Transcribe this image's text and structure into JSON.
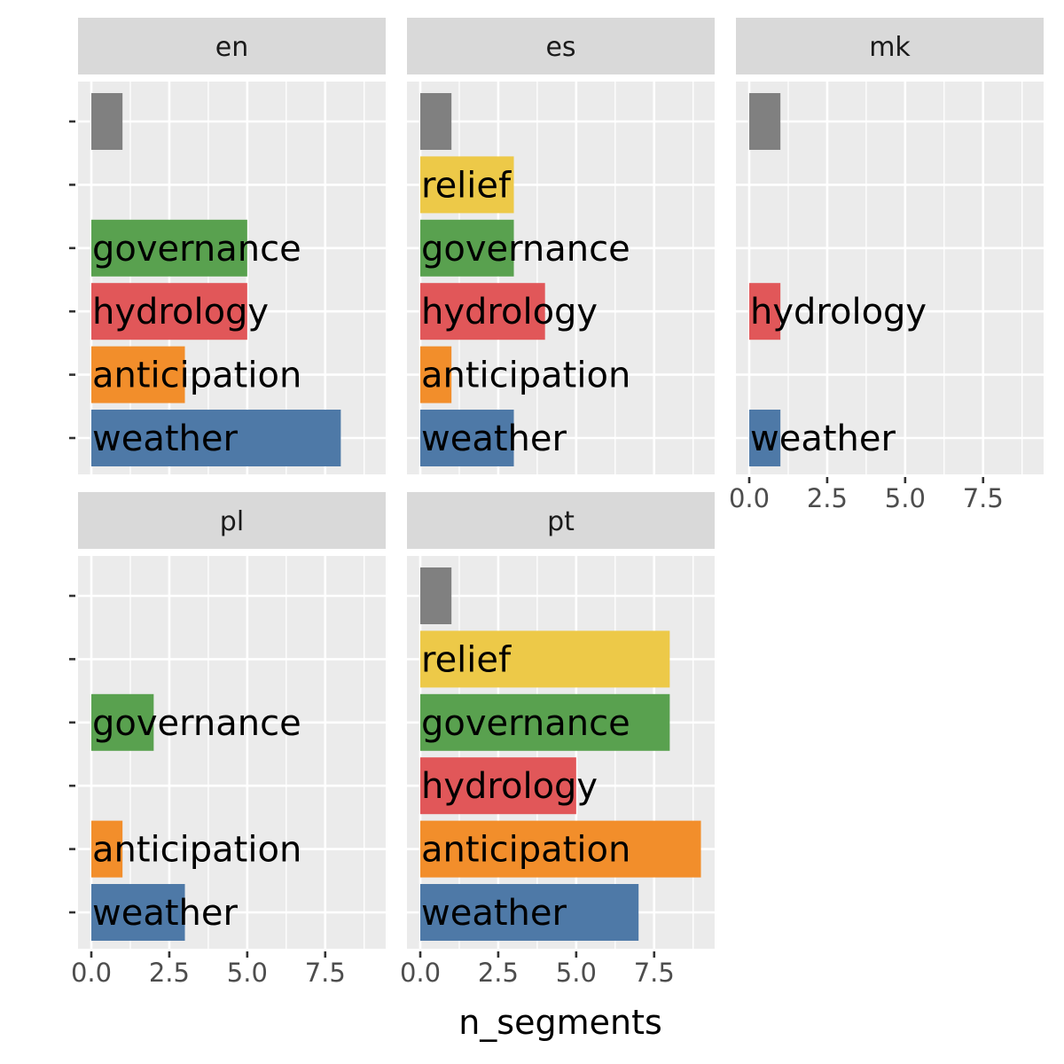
{
  "chart_data": {
    "type": "bar",
    "orientation": "horizontal",
    "facet_layout": "3 columns, 2 rows",
    "xlabel": "n_segments",
    "ylabel": "",
    "xlim": [
      0,
      9.45
    ],
    "x_ticks": [
      "0.0",
      "2.5",
      "5.0",
      "7.5"
    ],
    "x_tick_values": [
      0,
      2.5,
      5,
      7.5
    ],
    "categories": [
      "weather",
      "anticipation",
      "hydrology",
      "governance",
      "relief",
      ""
    ],
    "category_colors": {
      "weather": "#4e79a7",
      "anticipation": "#f28e2b",
      "hydrology": "#e15759",
      "governance": "#59a14f",
      "relief": "#edc948",
      "": "#808080"
    },
    "panel_background": "#ebebeb",
    "strip_background": "#d9d9d9",
    "grid": true,
    "facets": [
      {
        "name": "en",
        "values": {
          "weather": 8,
          "anticipation": 3,
          "hydrology": 5,
          "governance": 5,
          "relief": null,
          "": 1
        }
      },
      {
        "name": "es",
        "values": {
          "weather": 3,
          "anticipation": 1,
          "hydrology": 4,
          "governance": 3,
          "relief": 3,
          "": 1
        }
      },
      {
        "name": "mk",
        "values": {
          "weather": 1,
          "anticipation": null,
          "hydrology": 1,
          "governance": null,
          "relief": null,
          "": 1
        }
      },
      {
        "name": "pl",
        "values": {
          "weather": 3,
          "anticipation": 1,
          "hydrology": null,
          "governance": 2,
          "relief": null,
          "": null
        }
      },
      {
        "name": "pt",
        "values": {
          "weather": 7,
          "anticipation": 9,
          "hydrology": 5,
          "governance": 8,
          "relief": 8,
          "": 1
        }
      }
    ]
  }
}
